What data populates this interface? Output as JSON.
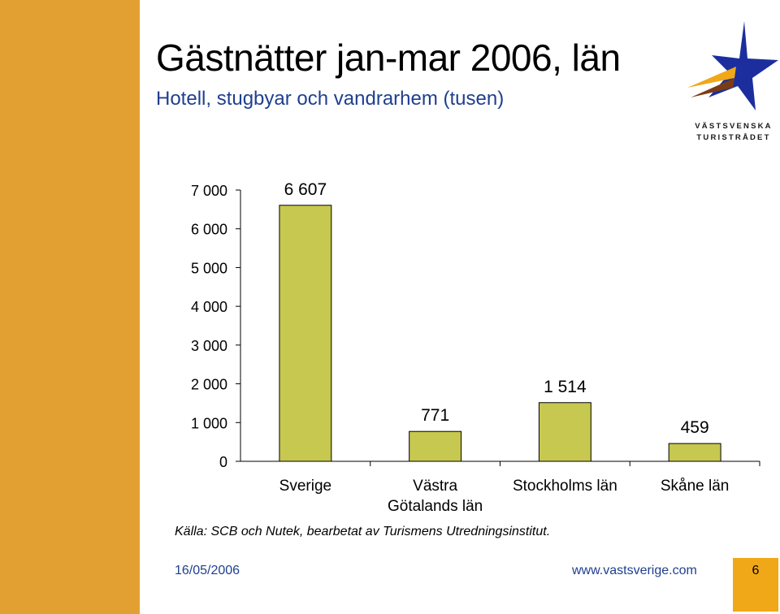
{
  "slide": {
    "title": "Gästnätter jan-mar 2006, län",
    "subtitle": "Hotell, stugbyar och vandrarhem (tusen)",
    "source": "Källa: SCB och Nutek, bearbetat av Turismens Utredningsinstitut.",
    "date": "16/05/2006",
    "url": "www.vastsverige.com",
    "page_number": "6",
    "logo_text_line1": "VÄSTSVENSKA",
    "logo_text_line2": "TURISTRÅDET"
  },
  "colors": {
    "left_band": "#E3A032",
    "page_box": "#F0A818",
    "bar_fill": "#C6C84F",
    "bar_stroke": "#000000",
    "text_blue": "#1F3F8F",
    "logo_blue": "#1C2E9E",
    "logo_orange": "#F0A818",
    "logo_brown": "#7A3C14"
  },
  "icons": {
    "logo": "star-logo-icon"
  },
  "chart_data": {
    "type": "bar",
    "categories": [
      "Sverige",
      "Västra Götalands län",
      "Stockholms län",
      "Skåne län"
    ],
    "category_lines": [
      [
        "Sverige"
      ],
      [
        "Västra",
        "Götalands län"
      ],
      [
        "Stockholms län"
      ],
      [
        "Skåne län"
      ]
    ],
    "values": [
      6607,
      771,
      1514,
      459
    ],
    "value_labels": [
      "6 607",
      "771",
      "1 514",
      "459"
    ],
    "title": "",
    "xlabel": "",
    "ylabel": "",
    "ylim": [
      0,
      7000
    ],
    "yticks": [
      0,
      1000,
      2000,
      3000,
      4000,
      5000,
      6000,
      7000
    ],
    "ytick_labels": [
      "0",
      "1 000",
      "2 000",
      "3 000",
      "4 000",
      "5 000",
      "6 000",
      "7 000"
    ],
    "grid": false,
    "legend": "none"
  }
}
